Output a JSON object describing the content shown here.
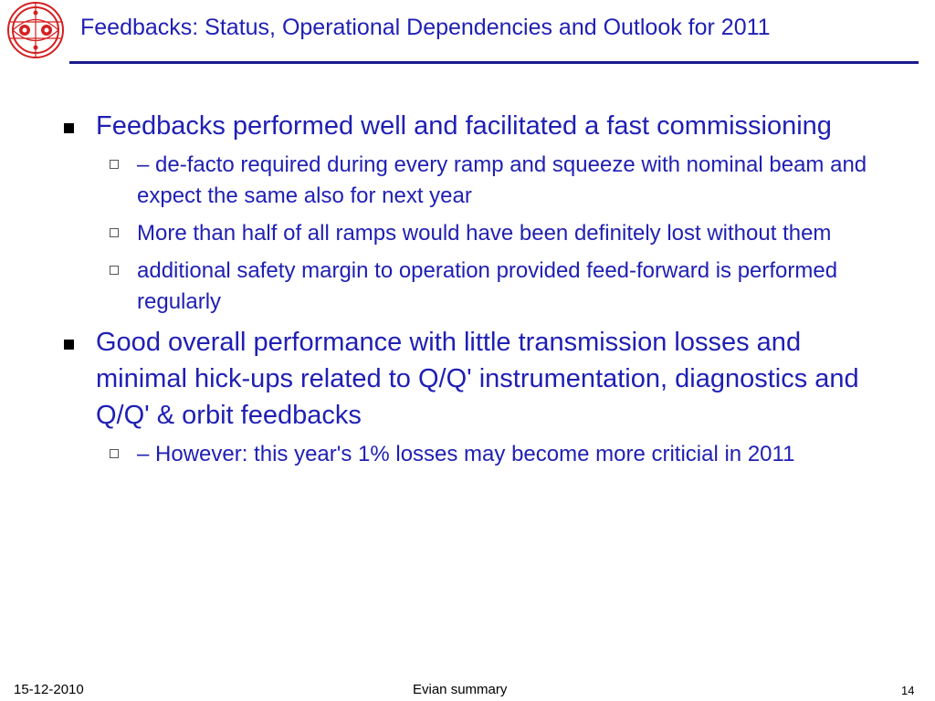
{
  "slide": {
    "title": "Feedbacks: Status, Operational Dependencies and Outlook for 2011",
    "bullets": [
      {
        "text": "Feedbacks performed well and facilitated a fast commissioning",
        "sub": [
          "– de-facto required during every ramp and squeeze with nominal beam and expect the same also for next year",
          "More than half of all ramps would have been definitely lost without them",
          "additional safety margin to operation provided feed-forward is performed regularly"
        ]
      },
      {
        "text": "Good overall performance with little transmission losses and minimal hick-ups related to Q/Q' instrumentation, diagnostics and Q/Q' & orbit feedbacks",
        "sub": [
          "– However: this year's 1% losses may become more criticial in 2011"
        ]
      }
    ]
  },
  "footer": {
    "date": "15-12-2010",
    "center": "Evian summary",
    "page": "14"
  },
  "colors": {
    "text": "#1f1fb4",
    "rule": "#1a1a8c",
    "logo_red": "#d42020"
  },
  "icons": {
    "logo": "accelerator-cross-section-logo",
    "level1_bullet": "filled-square-bullet",
    "level2_bullet": "hollow-square-bullet"
  }
}
